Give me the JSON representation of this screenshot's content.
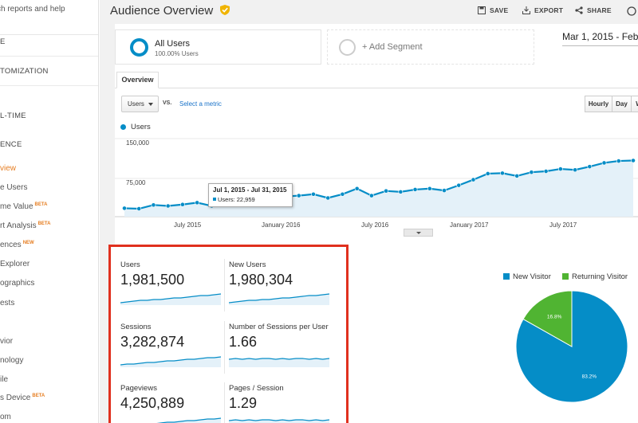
{
  "sidebar": {
    "search_text": "ch reports and help",
    "items": [
      {
        "label": "E"
      },
      {
        "label": "TOMIZATION"
      },
      {
        "label": "L-TIME"
      },
      {
        "label": "ENCE"
      },
      {
        "label": "view"
      },
      {
        "label": "e Users"
      },
      {
        "label": "me Value",
        "badge": "BETA"
      },
      {
        "label": "rt Analysis",
        "badge": "BETA"
      },
      {
        "label": "ences",
        "badge": "NEW"
      },
      {
        "label": "Explorer"
      },
      {
        "label": "ographics"
      },
      {
        "label": "ests"
      },
      {
        "label": "vior"
      },
      {
        "label": "nology"
      },
      {
        "label": "ile"
      },
      {
        "label": "s Device",
        "badge": "BETA"
      },
      {
        "label": "om"
      }
    ]
  },
  "header": {
    "title": "Audience Overview",
    "actions": {
      "save": "SAVE",
      "export": "EXPORT",
      "share": "SHARE"
    }
  },
  "segments": {
    "all_users": {
      "name": "All Users",
      "pct": "100.00% Users"
    },
    "add_segment": "+ Add Segment"
  },
  "date_range": "Mar 1, 2015 - Feb",
  "tabs": {
    "overview": "Overview"
  },
  "controls": {
    "metric": "Users",
    "vs": "VS.",
    "select_metric": "Select a metric",
    "granularity": [
      "Hourly",
      "Day",
      "W"
    ]
  },
  "chart_data": {
    "type": "line",
    "series": [
      {
        "name": "Users",
        "values": [
          18000,
          17000,
          25000,
          23000,
          26000,
          30000,
          22959,
          27000,
          31000,
          35000,
          40000,
          43000,
          45000,
          48000,
          40000,
          48000,
          60000,
          45000,
          55000,
          53000,
          58000,
          60000,
          56000,
          67000,
          79000,
          92000,
          93000,
          87000,
          95000,
          97000,
          102000,
          100000,
          107000,
          115000,
          119000,
          120000
        ]
      }
    ],
    "yticks": [
      "150,000",
      "75,000"
    ],
    "ylim": [
      0,
      160000
    ],
    "xticks": [
      "July 2015",
      "January 2016",
      "July 2016",
      "January 2017",
      "July 2017"
    ],
    "tooltip": {
      "date": "Jul 1, 2015 - Jul 31, 2015",
      "text": "Users: 22,959"
    },
    "color": "#058dc7"
  },
  "metrics": [
    {
      "label": "Users",
      "value": "1,981,500"
    },
    {
      "label": "New Users",
      "value": "1,980,304"
    },
    {
      "label": "Sessions",
      "value": "3,282,874"
    },
    {
      "label": "Number of Sessions per User",
      "value": "1.66"
    },
    {
      "label": "Pageviews",
      "value": "4,250,889"
    },
    {
      "label": "Pages / Session",
      "value": "1.29"
    }
  ],
  "pie": {
    "legend": [
      {
        "label": "New Visitor",
        "color": "#058dc7"
      },
      {
        "label": "Returning Visitor",
        "color": "#50b432"
      }
    ],
    "chart_data": {
      "type": "pie",
      "slices": [
        {
          "label": "New Visitor",
          "value": 83.2,
          "text": "83.2%"
        },
        {
          "label": "Returning Visitor",
          "value": 16.8,
          "text": "16.8%"
        }
      ]
    }
  },
  "colors": {
    "accent": "#058dc7",
    "highlight": "#e0301e",
    "active_nav": "#e67e22",
    "returning": "#50b432"
  }
}
